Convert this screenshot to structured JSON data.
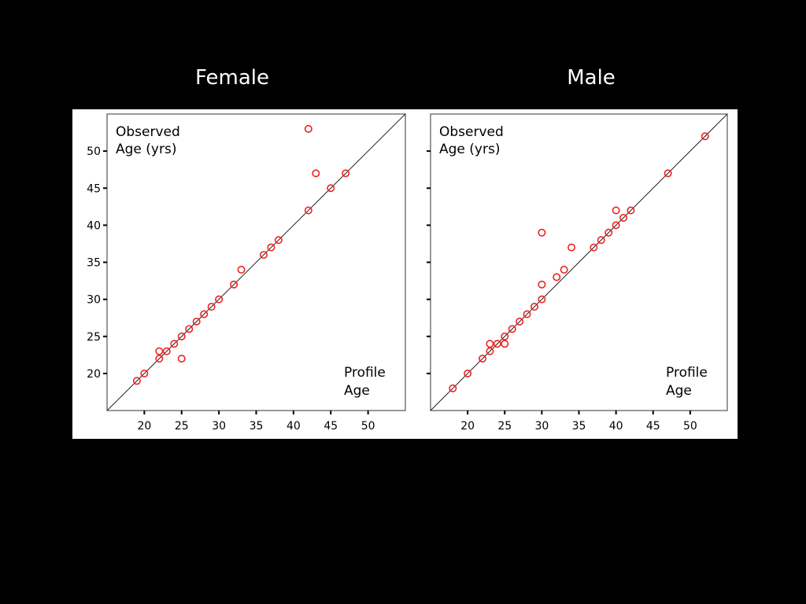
{
  "slide": {
    "background": "#000000",
    "female_title": "Female",
    "male_title": "Male"
  },
  "chart_data": [
    {
      "type": "scatter",
      "title": "Female",
      "ylabel_lines": [
        "Observed",
        "Age (yrs)"
      ],
      "xlabel_lines": [
        "Profile",
        "Age"
      ],
      "xlim": [
        15,
        55
      ],
      "ylim": [
        15,
        55
      ],
      "x_ticks": [
        20,
        25,
        30,
        35,
        40,
        45,
        50
      ],
      "y_ticks": [
        20,
        25,
        30,
        35,
        40,
        45,
        50
      ],
      "show_y_tick_labels": true,
      "reference_line": "y = x",
      "marker_color": "#ee2222",
      "grid": false,
      "points": [
        {
          "x": 19,
          "y": 19
        },
        {
          "x": 20,
          "y": 20
        },
        {
          "x": 22,
          "y": 22
        },
        {
          "x": 22,
          "y": 23
        },
        {
          "x": 23,
          "y": 23
        },
        {
          "x": 24,
          "y": 24
        },
        {
          "x": 25,
          "y": 25
        },
        {
          "x": 25,
          "y": 22
        },
        {
          "x": 26,
          "y": 26
        },
        {
          "x": 27,
          "y": 27
        },
        {
          "x": 28,
          "y": 28
        },
        {
          "x": 29,
          "y": 29
        },
        {
          "x": 30,
          "y": 30
        },
        {
          "x": 32,
          "y": 32
        },
        {
          "x": 33,
          "y": 34
        },
        {
          "x": 36,
          "y": 36
        },
        {
          "x": 37,
          "y": 37
        },
        {
          "x": 38,
          "y": 38
        },
        {
          "x": 42,
          "y": 42
        },
        {
          "x": 43,
          "y": 47
        },
        {
          "x": 42,
          "y": 53
        },
        {
          "x": 45,
          "y": 45
        },
        {
          "x": 47,
          "y": 47
        }
      ]
    },
    {
      "type": "scatter",
      "title": "Male",
      "ylabel_lines": [
        "Observed",
        "Age (yrs)"
      ],
      "xlabel_lines": [
        "Profile",
        "Age"
      ],
      "xlim": [
        15,
        55
      ],
      "ylim": [
        15,
        55
      ],
      "x_ticks": [
        20,
        25,
        30,
        35,
        40,
        45,
        50
      ],
      "y_ticks": [
        20,
        25,
        30,
        35,
        40,
        45,
        50
      ],
      "show_y_tick_labels": false,
      "reference_line": "y = x",
      "marker_color": "#ee2222",
      "grid": false,
      "points": [
        {
          "x": 18,
          "y": 18
        },
        {
          "x": 20,
          "y": 20
        },
        {
          "x": 22,
          "y": 22
        },
        {
          "x": 23,
          "y": 23
        },
        {
          "x": 23,
          "y": 24
        },
        {
          "x": 24,
          "y": 24
        },
        {
          "x": 25,
          "y": 24
        },
        {
          "x": 25,
          "y": 25
        },
        {
          "x": 26,
          "y": 26
        },
        {
          "x": 27,
          "y": 27
        },
        {
          "x": 28,
          "y": 28
        },
        {
          "x": 29,
          "y": 29
        },
        {
          "x": 30,
          "y": 30
        },
        {
          "x": 30,
          "y": 32
        },
        {
          "x": 30,
          "y": 39
        },
        {
          "x": 32,
          "y": 33
        },
        {
          "x": 33,
          "y": 34
        },
        {
          "x": 34,
          "y": 37
        },
        {
          "x": 37,
          "y": 37
        },
        {
          "x": 38,
          "y": 38
        },
        {
          "x": 39,
          "y": 39
        },
        {
          "x": 40,
          "y": 40
        },
        {
          "x": 40,
          "y": 42
        },
        {
          "x": 41,
          "y": 41
        },
        {
          "x": 42,
          "y": 42
        },
        {
          "x": 47,
          "y": 47
        },
        {
          "x": 52,
          "y": 52
        }
      ]
    }
  ]
}
